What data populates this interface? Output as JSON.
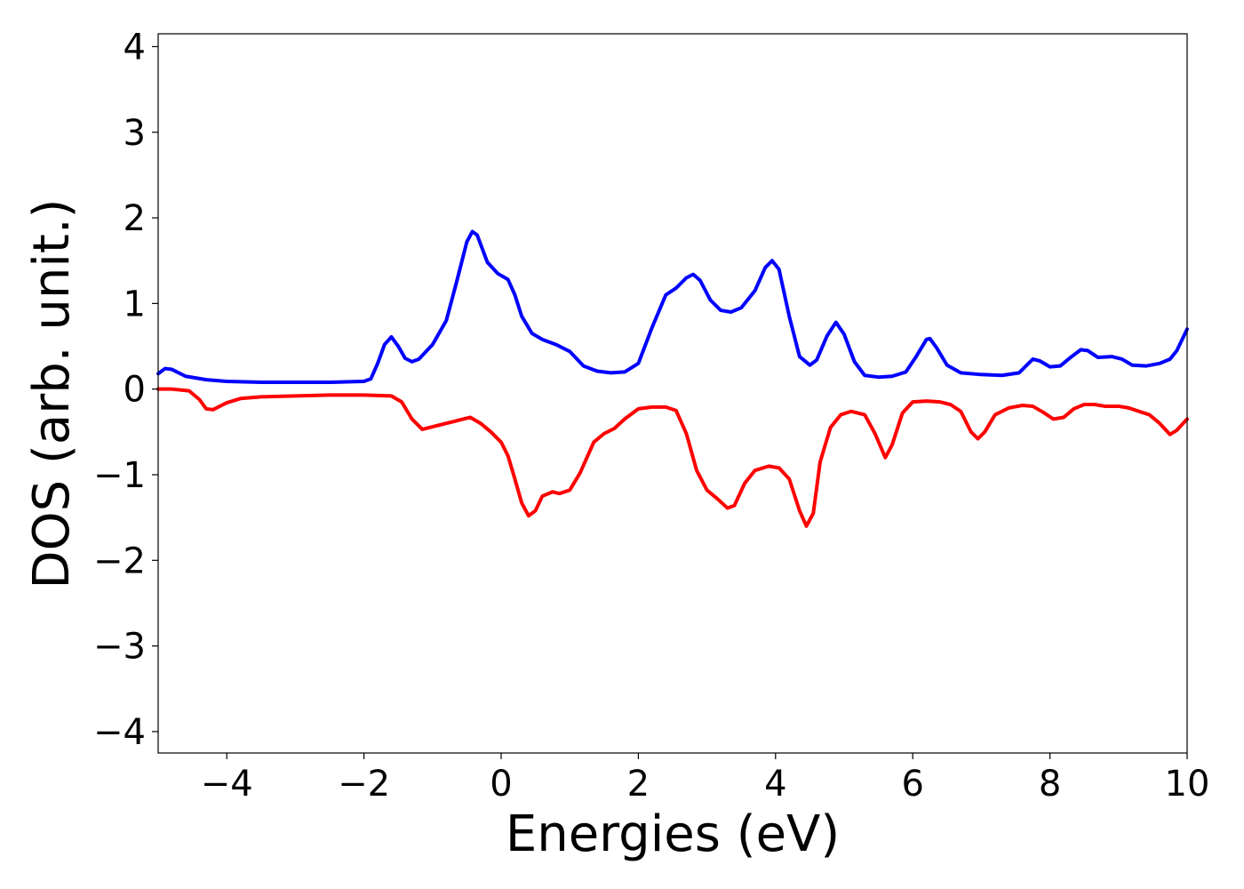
{
  "chart_data": {
    "type": "line",
    "title": "",
    "xlabel": "Energies (eV)",
    "ylabel": "DOS (arb. unit.)",
    "xlim": [
      -5,
      10
    ],
    "ylim": [
      -4.25,
      4.15
    ],
    "grid": false,
    "legend": "none",
    "x_ticks": [
      {
        "value": -4,
        "label": "−4"
      },
      {
        "value": -2,
        "label": "−2"
      },
      {
        "value": 0,
        "label": "0"
      },
      {
        "value": 2,
        "label": "2"
      },
      {
        "value": 4,
        "label": "4"
      },
      {
        "value": 6,
        "label": "6"
      },
      {
        "value": 8,
        "label": "8"
      },
      {
        "value": 10,
        "label": "10"
      }
    ],
    "y_ticks": [
      {
        "value": 4,
        "label": "4"
      },
      {
        "value": 3,
        "label": "3"
      },
      {
        "value": 2,
        "label": "2"
      },
      {
        "value": 1,
        "label": "1"
      },
      {
        "value": 0,
        "label": "0"
      },
      {
        "value": -1,
        "label": "−1"
      },
      {
        "value": -2,
        "label": "−2"
      },
      {
        "value": -3,
        "label": "−3"
      },
      {
        "value": -4,
        "label": "−4"
      }
    ],
    "series": [
      {
        "color": "#0000ff",
        "points": [
          [
            -5.0,
            0.18
          ],
          [
            -4.9,
            0.24
          ],
          [
            -4.8,
            0.23
          ],
          [
            -4.6,
            0.15
          ],
          [
            -4.3,
            0.11
          ],
          [
            -4.0,
            0.09
          ],
          [
            -3.5,
            0.08
          ],
          [
            -3.0,
            0.08
          ],
          [
            -2.5,
            0.08
          ],
          [
            -2.0,
            0.09
          ],
          [
            -1.9,
            0.12
          ],
          [
            -1.8,
            0.3
          ],
          [
            -1.7,
            0.52
          ],
          [
            -1.6,
            0.61
          ],
          [
            -1.5,
            0.5
          ],
          [
            -1.4,
            0.36
          ],
          [
            -1.3,
            0.32
          ],
          [
            -1.2,
            0.35
          ],
          [
            -1.0,
            0.52
          ],
          [
            -0.8,
            0.8
          ],
          [
            -0.65,
            1.25
          ],
          [
            -0.5,
            1.72
          ],
          [
            -0.42,
            1.84
          ],
          [
            -0.35,
            1.8
          ],
          [
            -0.2,
            1.48
          ],
          [
            -0.05,
            1.35
          ],
          [
            0.1,
            1.28
          ],
          [
            0.2,
            1.1
          ],
          [
            0.3,
            0.85
          ],
          [
            0.45,
            0.65
          ],
          [
            0.6,
            0.58
          ],
          [
            0.8,
            0.52
          ],
          [
            1.0,
            0.44
          ],
          [
            1.2,
            0.27
          ],
          [
            1.4,
            0.21
          ],
          [
            1.6,
            0.19
          ],
          [
            1.8,
            0.2
          ],
          [
            2.0,
            0.3
          ],
          [
            2.2,
            0.72
          ],
          [
            2.4,
            1.1
          ],
          [
            2.55,
            1.18
          ],
          [
            2.7,
            1.3
          ],
          [
            2.8,
            1.34
          ],
          [
            2.9,
            1.27
          ],
          [
            3.05,
            1.04
          ],
          [
            3.2,
            0.92
          ],
          [
            3.35,
            0.9
          ],
          [
            3.5,
            0.95
          ],
          [
            3.7,
            1.15
          ],
          [
            3.85,
            1.42
          ],
          [
            3.95,
            1.5
          ],
          [
            4.05,
            1.4
          ],
          [
            4.2,
            0.85
          ],
          [
            4.35,
            0.38
          ],
          [
            4.5,
            0.28
          ],
          [
            4.6,
            0.34
          ],
          [
            4.75,
            0.62
          ],
          [
            4.88,
            0.78
          ],
          [
            5.0,
            0.64
          ],
          [
            5.15,
            0.32
          ],
          [
            5.3,
            0.16
          ],
          [
            5.5,
            0.14
          ],
          [
            5.7,
            0.15
          ],
          [
            5.9,
            0.2
          ],
          [
            6.05,
            0.38
          ],
          [
            6.2,
            0.58
          ],
          [
            6.25,
            0.59
          ],
          [
            6.35,
            0.48
          ],
          [
            6.5,
            0.28
          ],
          [
            6.7,
            0.19
          ],
          [
            7.0,
            0.17
          ],
          [
            7.3,
            0.16
          ],
          [
            7.55,
            0.19
          ],
          [
            7.65,
            0.27
          ],
          [
            7.75,
            0.35
          ],
          [
            7.85,
            0.33
          ],
          [
            8.0,
            0.26
          ],
          [
            8.15,
            0.27
          ],
          [
            8.3,
            0.37
          ],
          [
            8.45,
            0.46
          ],
          [
            8.55,
            0.45
          ],
          [
            8.7,
            0.37
          ],
          [
            8.9,
            0.38
          ],
          [
            9.05,
            0.35
          ],
          [
            9.2,
            0.28
          ],
          [
            9.4,
            0.27
          ],
          [
            9.6,
            0.3
          ],
          [
            9.75,
            0.35
          ],
          [
            9.85,
            0.45
          ],
          [
            10.0,
            0.7
          ]
        ]
      },
      {
        "color": "#ff0000",
        "points": [
          [
            -5.0,
            0.0
          ],
          [
            -4.8,
            0.0
          ],
          [
            -4.55,
            -0.02
          ],
          [
            -4.4,
            -0.12
          ],
          [
            -4.3,
            -0.23
          ],
          [
            -4.2,
            -0.24
          ],
          [
            -4.0,
            -0.16
          ],
          [
            -3.8,
            -0.11
          ],
          [
            -3.5,
            -0.09
          ],
          [
            -3.0,
            -0.08
          ],
          [
            -2.5,
            -0.07
          ],
          [
            -2.0,
            -0.07
          ],
          [
            -1.6,
            -0.08
          ],
          [
            -1.45,
            -0.15
          ],
          [
            -1.3,
            -0.35
          ],
          [
            -1.15,
            -0.47
          ],
          [
            -1.0,
            -0.44
          ],
          [
            -0.8,
            -0.4
          ],
          [
            -0.6,
            -0.36
          ],
          [
            -0.45,
            -0.33
          ],
          [
            -0.3,
            -0.4
          ],
          [
            -0.15,
            -0.5
          ],
          [
            0.0,
            -0.62
          ],
          [
            0.1,
            -0.78
          ],
          [
            0.2,
            -1.05
          ],
          [
            0.3,
            -1.33
          ],
          [
            0.4,
            -1.48
          ],
          [
            0.5,
            -1.42
          ],
          [
            0.6,
            -1.25
          ],
          [
            0.75,
            -1.2
          ],
          [
            0.85,
            -1.22
          ],
          [
            1.0,
            -1.18
          ],
          [
            1.15,
            -0.98
          ],
          [
            1.35,
            -0.62
          ],
          [
            1.5,
            -0.52
          ],
          [
            1.65,
            -0.46
          ],
          [
            1.8,
            -0.35
          ],
          [
            2.0,
            -0.23
          ],
          [
            2.2,
            -0.21
          ],
          [
            2.4,
            -0.21
          ],
          [
            2.55,
            -0.25
          ],
          [
            2.7,
            -0.52
          ],
          [
            2.85,
            -0.95
          ],
          [
            3.0,
            -1.18
          ],
          [
            3.15,
            -1.28
          ],
          [
            3.3,
            -1.39
          ],
          [
            3.4,
            -1.36
          ],
          [
            3.55,
            -1.1
          ],
          [
            3.7,
            -0.95
          ],
          [
            3.9,
            -0.9
          ],
          [
            4.05,
            -0.92
          ],
          [
            4.2,
            -1.05
          ],
          [
            4.35,
            -1.42
          ],
          [
            4.45,
            -1.6
          ],
          [
            4.55,
            -1.45
          ],
          [
            4.65,
            -0.85
          ],
          [
            4.8,
            -0.45
          ],
          [
            4.95,
            -0.3
          ],
          [
            5.1,
            -0.26
          ],
          [
            5.3,
            -0.3
          ],
          [
            5.45,
            -0.52
          ],
          [
            5.6,
            -0.8
          ],
          [
            5.7,
            -0.65
          ],
          [
            5.85,
            -0.28
          ],
          [
            6.0,
            -0.15
          ],
          [
            6.2,
            -0.14
          ],
          [
            6.4,
            -0.15
          ],
          [
            6.55,
            -0.18
          ],
          [
            6.7,
            -0.26
          ],
          [
            6.85,
            -0.5
          ],
          [
            6.95,
            -0.58
          ],
          [
            7.05,
            -0.5
          ],
          [
            7.2,
            -0.3
          ],
          [
            7.4,
            -0.22
          ],
          [
            7.6,
            -0.19
          ],
          [
            7.75,
            -0.2
          ],
          [
            7.9,
            -0.27
          ],
          [
            8.05,
            -0.35
          ],
          [
            8.2,
            -0.33
          ],
          [
            8.35,
            -0.23
          ],
          [
            8.5,
            -0.18
          ],
          [
            8.65,
            -0.18
          ],
          [
            8.8,
            -0.2
          ],
          [
            9.0,
            -0.2
          ],
          [
            9.15,
            -0.22
          ],
          [
            9.3,
            -0.26
          ],
          [
            9.45,
            -0.3
          ],
          [
            9.6,
            -0.4
          ],
          [
            9.75,
            -0.53
          ],
          [
            9.85,
            -0.48
          ],
          [
            10.0,
            -0.35
          ]
        ]
      }
    ]
  }
}
